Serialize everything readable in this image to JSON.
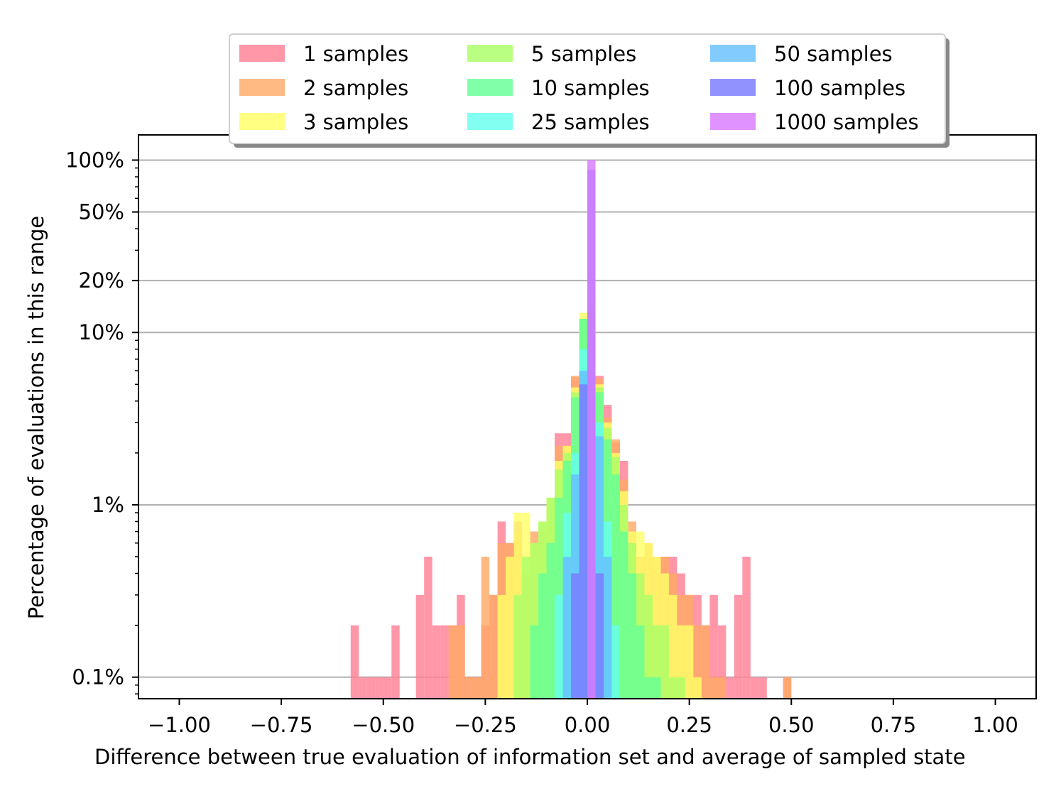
{
  "chart_data": {
    "type": "bar",
    "subtype": "overlaid histogram",
    "title": "",
    "xlabel": "Difference between true evaluation of information set and average of sampled state",
    "ylabel": "Percentage of evaluations in this range",
    "xlim": [
      -1.1,
      1.1
    ],
    "ylim_percent": [
      0.075,
      140
    ],
    "yscale": "log",
    "grid": "horizontal",
    "legend_position": "top-center",
    "bin_width": 0.02,
    "x_ticks": [
      -1.0,
      -0.75,
      -0.5,
      -0.25,
      0.0,
      0.25,
      0.5,
      0.75,
      1.0
    ],
    "x_tick_labels": [
      "−1.00",
      "−0.75",
      "−0.50",
      "−0.25",
      "0.00",
      "0.25",
      "0.50",
      "0.75",
      "1.00"
    ],
    "y_ticks": [
      0.1,
      1,
      10,
      20,
      50,
      100
    ],
    "y_tick_labels": [
      "0.1%",
      "1%",
      "10%",
      "20%",
      "50%",
      "100%"
    ],
    "series": [
      {
        "name": "1 samples",
        "color": "#ff8096",
        "x": [
          -0.57,
          -0.55,
          -0.53,
          -0.51,
          -0.49,
          -0.47,
          -0.41,
          -0.39,
          -0.37,
          -0.35,
          -0.33,
          -0.31,
          -0.29,
          -0.27,
          -0.25,
          -0.23,
          -0.21,
          -0.19,
          -0.17,
          -0.15,
          -0.13,
          -0.11,
          -0.09,
          -0.07,
          -0.05,
          -0.03,
          -0.01,
          0.01,
          0.03,
          0.05,
          0.07,
          0.09,
          0.11,
          0.13,
          0.15,
          0.17,
          0.19,
          0.21,
          0.23,
          0.25,
          0.27,
          0.29,
          0.31,
          0.33,
          0.35,
          0.37,
          0.39,
          0.41,
          0.43,
          0.45,
          0.47,
          0.49
        ],
        "values": [
          0.2,
          0.1,
          0.1,
          0.1,
          0.1,
          0.2,
          0.3,
          0.5,
          0.2,
          0.2,
          0.2,
          0.3,
          0.1,
          0.1,
          0.2,
          0.3,
          0.8,
          0.6,
          0.8,
          0.4,
          0.6,
          0.7,
          1.0,
          2.6,
          2.6,
          5.5,
          12.0,
          14.0,
          5.6,
          3.8,
          2.3,
          1.8,
          0.6,
          0.5,
          0.5,
          0.4,
          0.5,
          0.5,
          0.4,
          0.3,
          0.3,
          0.2,
          0.3,
          0.2,
          0.1,
          0.3,
          0.5,
          0.1,
          0.1,
          0,
          0,
          0.1
        ]
      },
      {
        "name": "2 samples",
        "color": "#ffaa66",
        "x": [
          -0.33,
          -0.31,
          -0.29,
          -0.27,
          -0.25,
          -0.23,
          -0.21,
          -0.19,
          -0.17,
          -0.15,
          -0.13,
          -0.11,
          -0.09,
          -0.07,
          -0.05,
          -0.03,
          -0.01,
          0.01,
          0.03,
          0.05,
          0.07,
          0.09,
          0.11,
          0.13,
          0.15,
          0.17,
          0.19,
          0.21,
          0.23,
          0.25,
          0.27,
          0.29,
          0.31,
          0.33,
          0.49
        ],
        "values": [
          0.2,
          0.2,
          0.1,
          0.1,
          0.5,
          0.3,
          0.6,
          0.6,
          0.7,
          0.4,
          0.7,
          0.6,
          1.0,
          2.2,
          2.2,
          5.6,
          12.0,
          15.0,
          5.4,
          3.2,
          2.4,
          1.4,
          0.8,
          0.5,
          0.6,
          0.5,
          0.5,
          0.4,
          0.3,
          0.3,
          0.2,
          0.2,
          0.1,
          0.1,
          0.1
        ]
      },
      {
        "name": "3 samples",
        "color": "#ffff66",
        "x": [
          -0.21,
          -0.19,
          -0.17,
          -0.15,
          -0.13,
          -0.11,
          -0.09,
          -0.07,
          -0.05,
          -0.03,
          -0.01,
          0.01,
          0.03,
          0.05,
          0.07,
          0.09,
          0.11,
          0.13,
          0.15,
          0.17,
          0.19,
          0.21,
          0.23,
          0.25,
          0.27
        ],
        "values": [
          0.3,
          0.5,
          0.9,
          0.9,
          0.6,
          0.8,
          1.1,
          1.8,
          2.2,
          4.8,
          13.0,
          15.0,
          5.0,
          3.0,
          2.0,
          1.2,
          0.7,
          0.7,
          0.6,
          0.5,
          0.4,
          0.3,
          0.2,
          0.2,
          0.1
        ]
      },
      {
        "name": "5 samples",
        "color": "#aaff66",
        "x": [
          -0.17,
          -0.15,
          -0.13,
          -0.11,
          -0.09,
          -0.07,
          -0.05,
          -0.03,
          -0.01,
          0.01,
          0.03,
          0.05,
          0.07,
          0.09,
          0.11,
          0.13,
          0.15,
          0.17,
          0.19,
          0.21,
          0.23
        ],
        "values": [
          0.3,
          0.5,
          0.6,
          0.8,
          1.1,
          1.6,
          2.0,
          4.5,
          12.0,
          14.0,
          4.8,
          2.8,
          1.9,
          1.0,
          0.6,
          0.4,
          0.3,
          0.2,
          0.2,
          0.1,
          0.1
        ]
      },
      {
        "name": "10 samples",
        "color": "#66ff96",
        "x": [
          -0.13,
          -0.11,
          -0.09,
          -0.07,
          -0.05,
          -0.03,
          -0.01,
          0.01,
          0.03,
          0.05,
          0.07,
          0.09,
          0.11,
          0.13,
          0.15,
          0.17
        ],
        "values": [
          0.2,
          0.4,
          0.6,
          1.1,
          1.8,
          4.2,
          12.0,
          13.5,
          4.5,
          2.4,
          1.5,
          0.7,
          0.4,
          0.2,
          0.1,
          0.1
        ]
      },
      {
        "name": "25 samples",
        "color": "#66ffee",
        "x": [
          -0.07,
          -0.05,
          -0.03,
          -0.01,
          0.01,
          0.03,
          0.05,
          0.07
        ],
        "values": [
          0.3,
          0.9,
          2.0,
          8.0,
          9.5,
          3.0,
          0.8,
          0.2
        ]
      },
      {
        "name": "50 samples",
        "color": "#66c0ff",
        "x": [
          -0.05,
          -0.03,
          -0.01,
          0.01,
          0.03,
          0.05
        ],
        "values": [
          0.5,
          1.5,
          6.0,
          8.0,
          2.5,
          0.5
        ]
      },
      {
        "name": "100 samples",
        "color": "#7a7aff",
        "x": [
          -0.03,
          -0.01,
          0.01,
          0.03
        ],
        "values": [
          0.4,
          5.0,
          88.0,
          0.4
        ]
      },
      {
        "name": "1000 samples",
        "color": "#d97aff",
        "x": [
          0.01
        ],
        "values": [
          100.0
        ]
      }
    ]
  }
}
